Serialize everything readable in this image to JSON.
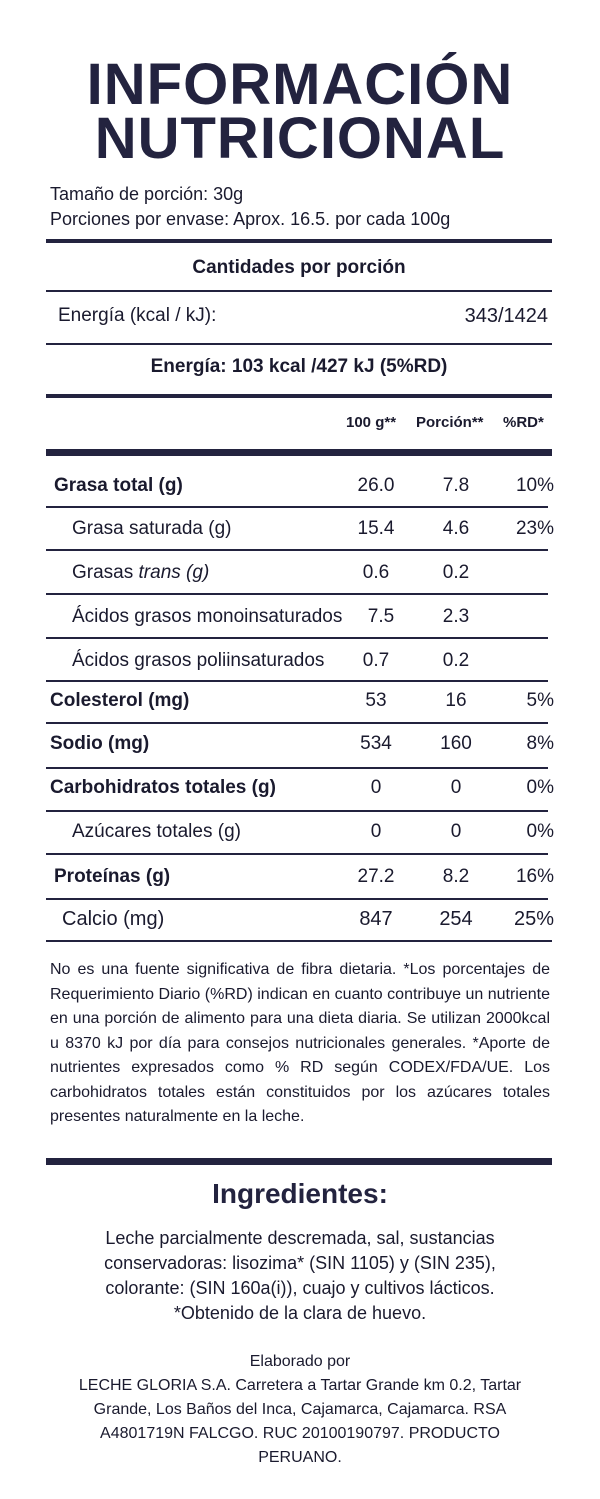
{
  "title": {
    "line1": "INFORMACIÓN",
    "line2": "NUTRICIONAL"
  },
  "serving": {
    "size": "Tamaño de porción: 30g",
    "per_pack": "Porciones por envase: Aprox. 16.5. por cada 100g"
  },
  "amounts_header": "Cantidades por porción",
  "energy_label": "Energía (kcal / kJ):",
  "energy_value": "343/1424",
  "energy_summary": "Energía: 103 kcal /427 kJ (5%RD)",
  "columns": {
    "col1": "100 g**",
    "col2": "Porción**",
    "col3": "%RD*"
  },
  "rows": [
    {
      "name": "Grasa total (g)",
      "v100": "26.0",
      "portion": "7.8",
      "rd": "10%"
    },
    {
      "name": "Grasa saturada (g)",
      "v100": "15.4",
      "portion": "4.6",
      "rd": "23%"
    },
    {
      "name_prefix": "Grasas ",
      "name_italic": "trans (g)",
      "v100": "0.6",
      "portion": "0.2",
      "rd": ""
    },
    {
      "name": "Ácidos grasos monoinsaturados",
      "v100": "7.5",
      "portion": "2.3",
      "rd": ""
    },
    {
      "name": "Ácidos grasos poliinsaturados",
      "v100": "0.7",
      "portion": "0.2",
      "rd": ""
    },
    {
      "name": "Colesterol (mg)",
      "v100": "53",
      "portion": "16",
      "rd": "5%"
    },
    {
      "name": "Sodio (mg)",
      "v100": "534",
      "portion": "160",
      "rd": "8%"
    },
    {
      "name": "Carbohidratos totales (g)",
      "v100": "0",
      "portion": "0",
      "rd": "0%"
    },
    {
      "name": "Azúcares totales (g)",
      "v100": "0",
      "portion": "0",
      "rd": "0%"
    },
    {
      "name": "Proteínas (g)",
      "v100": "27.2",
      "portion": "8.2",
      "rd": "16%"
    },
    {
      "name": "Calcio (mg)",
      "v100": "847",
      "portion": "254",
      "rd": "25%"
    }
  ],
  "footnote": "No es una fuente significativa de fibra dietaria. *Los porcentajes de Requerimiento Diario (%RD) indican en cuanto contribuye un nutriente en una porción de alimento para una dieta diaria. Se utilizan 2000kcal u 8370 kJ por día para consejos nutricionales generales. *Aporte de nutrientes expresados como % RD según CODEX/FDA/UE. Los carbohidratos totales están constituidos por los azúcares totales presentes naturalmente en la leche.",
  "ingredients": {
    "title": "Ingredientes:",
    "line1": "Leche parcialmente descremada, sal, sustancias",
    "line2": "conservadoras: lisozima* (SIN 1105) y (SIN 235),",
    "line3": "colorante: (SIN 160a(i)), cuajo y cultivos lácticos.",
    "line4": "*Obtenido de la clara de huevo."
  },
  "maker": {
    "line1": "Elaborado por",
    "line2": "LECHE GLORIA S.A. Carretera a Tartar Grande km 0.2, Tartar",
    "line3": "Grande, Los Baños del Inca, Cajamarca, Cajamarca. RSA",
    "line4": "A4801719N FALCGO. RUC 20100190797. PRODUCTO",
    "line5": "PERUANO."
  }
}
